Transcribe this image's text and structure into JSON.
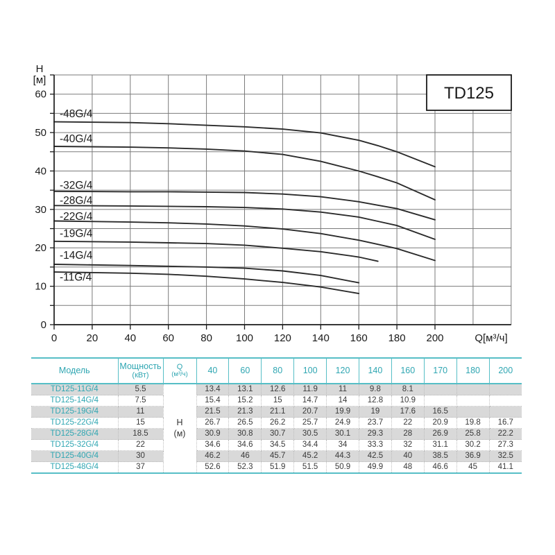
{
  "page": {
    "background": "#ffffff"
  },
  "chart": {
    "title": "TD125",
    "colors": {
      "curve": "#2b2b2b",
      "grid": "#7a7a7a",
      "axis": "#1a1a1a",
      "text": "#1a1a1a",
      "title_box_fill": "#ffffff"
    },
    "chart_data": {
      "type": "line",
      "title": "TD125",
      "xlabel": "Q[м³/ч]",
      "ylabel_lines": [
        "H",
        "[м]"
      ],
      "xlim": [
        0,
        240
      ],
      "ylim": [
        0,
        65
      ],
      "x_ticks": [
        0,
        20,
        40,
        60,
        80,
        100,
        120,
        140,
        160,
        180,
        200
      ],
      "y_ticks": [
        0,
        10,
        20,
        30,
        40,
        50,
        60
      ],
      "x_grid_step": 20,
      "y_grid_step": 5,
      "grid": true,
      "legend_position": "inline-left-labels",
      "series": [
        {
          "name": "-48G/4",
          "label_h": 54.9,
          "x": [
            0,
            40,
            60,
            80,
            100,
            120,
            140,
            160,
            170,
            180,
            200
          ],
          "h": [
            52.8,
            52.6,
            52.3,
            51.9,
            51.5,
            50.9,
            49.9,
            48,
            46.6,
            45,
            41.1
          ]
        },
        {
          "name": "-40G/4",
          "label_h": 48.4,
          "x": [
            0,
            40,
            60,
            80,
            100,
            120,
            140,
            160,
            170,
            180,
            200
          ],
          "h": [
            46.4,
            46.2,
            46,
            45.7,
            45.2,
            44.3,
            42.5,
            40,
            38.5,
            36.9,
            32.5
          ]
        },
        {
          "name": "-32G/4",
          "label_h": 36.3,
          "x": [
            0,
            40,
            60,
            80,
            100,
            120,
            140,
            160,
            170,
            180,
            200
          ],
          "h": [
            34.7,
            34.6,
            34.6,
            34.5,
            34.4,
            34,
            33.3,
            32,
            31.1,
            30.2,
            27.3
          ]
        },
        {
          "name": "-28G/4",
          "label_h": 32.3,
          "x": [
            0,
            40,
            60,
            80,
            100,
            120,
            140,
            160,
            170,
            180,
            200
          ],
          "h": [
            31,
            30.9,
            30.8,
            30.7,
            30.5,
            30.1,
            29.3,
            28,
            26.9,
            25.8,
            22.2
          ]
        },
        {
          "name": "-22G/4",
          "label_h": 28.2,
          "x": [
            0,
            40,
            60,
            80,
            100,
            120,
            140,
            160,
            170,
            180,
            200
          ],
          "h": [
            27,
            26.7,
            26.5,
            26.2,
            25.7,
            24.9,
            23.7,
            22,
            20.9,
            19.8,
            16.7
          ]
        },
        {
          "name": "-19G/4",
          "label_h": 23.7,
          "x": [
            0,
            40,
            60,
            80,
            100,
            120,
            140,
            160,
            170
          ],
          "h": [
            21.7,
            21.5,
            21.3,
            21.1,
            20.7,
            19.9,
            19,
            17.6,
            16.5
          ]
        },
        {
          "name": "-14G/4",
          "label_h": 18.1,
          "x": [
            0,
            40,
            60,
            80,
            100,
            120,
            140,
            160
          ],
          "h": [
            15.7,
            15.4,
            15.2,
            15,
            14.7,
            14,
            12.8,
            10.9
          ]
        },
        {
          "name": "-11G/4",
          "label_h": 12.4,
          "x": [
            0,
            40,
            60,
            80,
            100,
            120,
            140,
            160
          ],
          "h": [
            13.7,
            13.4,
            13.1,
            12.6,
            11.9,
            11,
            9.8,
            8.1
          ]
        }
      ]
    }
  },
  "table": {
    "headers": {
      "model": "Модель",
      "power_label": "Мощность",
      "power_unit": "(кВт)",
      "q_label": "Q",
      "q_unit": "(м³/ч)",
      "flow_columns": [
        "40",
        "60",
        "80",
        "100",
        "120",
        "140",
        "160",
        "170",
        "180",
        "200"
      ],
      "h_label": "H",
      "h_unit": "(м)"
    },
    "rows": [
      {
        "model": "TD125-11G/4",
        "power": "5.5",
        "values": [
          "13.4",
          "13.1",
          "12.6",
          "11.9",
          "11",
          "9.8",
          "8.1",
          "",
          "",
          ""
        ]
      },
      {
        "model": "TD125-14G/4",
        "power": "7.5",
        "values": [
          "15.4",
          "15.2",
          "15",
          "14.7",
          "14",
          "12.8",
          "10.9",
          "",
          "",
          ""
        ]
      },
      {
        "model": "TD125-19G/4",
        "power": "11",
        "values": [
          "21.5",
          "21.3",
          "21.1",
          "20.7",
          "19.9",
          "19",
          "17.6",
          "16.5",
          "",
          ""
        ]
      },
      {
        "model": "TD125-22G/4",
        "power": "15",
        "values": [
          "26.7",
          "26.5",
          "26.2",
          "25.7",
          "24.9",
          "23.7",
          "22",
          "20.9",
          "19.8",
          "16.7"
        ]
      },
      {
        "model": "TD125-28G/4",
        "power": "18.5",
        "values": [
          "30.9",
          "30.8",
          "30.7",
          "30.5",
          "30.1",
          "29.3",
          "28",
          "26.9",
          "25.8",
          "22.2"
        ]
      },
      {
        "model": "TD125-32G/4",
        "power": "22",
        "values": [
          "34.6",
          "34.6",
          "34.5",
          "34.4",
          "34",
          "33.3",
          "32",
          "31.1",
          "30.2",
          "27.3"
        ]
      },
      {
        "model": "TD125-40G/4",
        "power": "30",
        "values": [
          "46.2",
          "46",
          "45.7",
          "45.2",
          "44.3",
          "42.5",
          "40",
          "38.5",
          "36.9",
          "32.5"
        ]
      },
      {
        "model": "TD125-48G/4",
        "power": "37",
        "values": [
          "52.6",
          "52.3",
          "51.9",
          "51.5",
          "50.9",
          "49.9",
          "48",
          "46.6",
          "45",
          "41.1"
        ]
      }
    ],
    "colors": {
      "teal_text": "#2fa6b2",
      "teal_line": "#56bec6",
      "stripe": "#d9d9d9",
      "value_text": "#3a3a3a"
    }
  }
}
